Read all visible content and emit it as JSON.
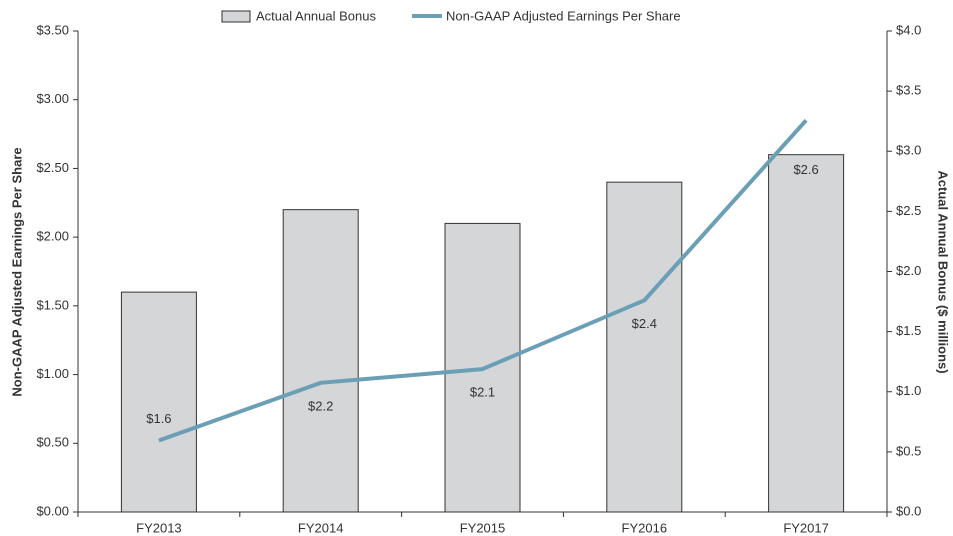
{
  "chart_data": {
    "type": "bar_line",
    "categories": [
      "FY2013",
      "FY2014",
      "FY2015",
      "FY2016",
      "FY2017"
    ],
    "series": [
      {
        "name": "Actual Annual Bonus",
        "type": "bar",
        "color": "#d5d6d8",
        "values": [
          1.6,
          2.2,
          2.1,
          2.4,
          2.6
        ],
        "value_labels": [
          "$1.6",
          "$2.2",
          "$2.1",
          "$2.4",
          "$2.6"
        ]
      },
      {
        "name": "Non-GAAP Adjusted Earnings Per Share",
        "type": "line",
        "color": "#6a9fb5",
        "values": [
          0.52,
          0.94,
          1.04,
          1.54,
          2.85
        ]
      }
    ],
    "ylabel": "Non-GAAP Adjusted Earnings Per Share",
    "y2label": "Actual Annual Bonus ($ millions)",
    "ylim": [
      0,
      3.5
    ],
    "yticks": [
      {
        "value": 0,
        "label": "$0.00"
      },
      {
        "value": 0.5,
        "label": "$0.50"
      },
      {
        "value": 1,
        "label": "$1.00"
      },
      {
        "value": 1.5,
        "label": "$1.50"
      },
      {
        "value": 2,
        "label": "$2.00"
      },
      {
        "value": 2.5,
        "label": "$2.50"
      },
      {
        "value": 3,
        "label": "$3.00"
      },
      {
        "value": 3.5,
        "label": "$3.50"
      }
    ],
    "y2lim": [
      0,
      4
    ],
    "y2ticks": [
      {
        "value": 0,
        "label": "$0.0"
      },
      {
        "value": 0.5,
        "label": "$0.5"
      },
      {
        "value": 1,
        "label": "$1.0"
      },
      {
        "value": 1.5,
        "label": "$1.5"
      },
      {
        "value": 2,
        "label": "$2.0"
      },
      {
        "value": 2.5,
        "label": "$2.5"
      },
      {
        "value": 3,
        "label": "$3.0"
      },
      {
        "value": 3.5,
        "label": "$3.5"
      },
      {
        "value": 4,
        "label": "$4.0"
      }
    ],
    "legend": "top"
  }
}
